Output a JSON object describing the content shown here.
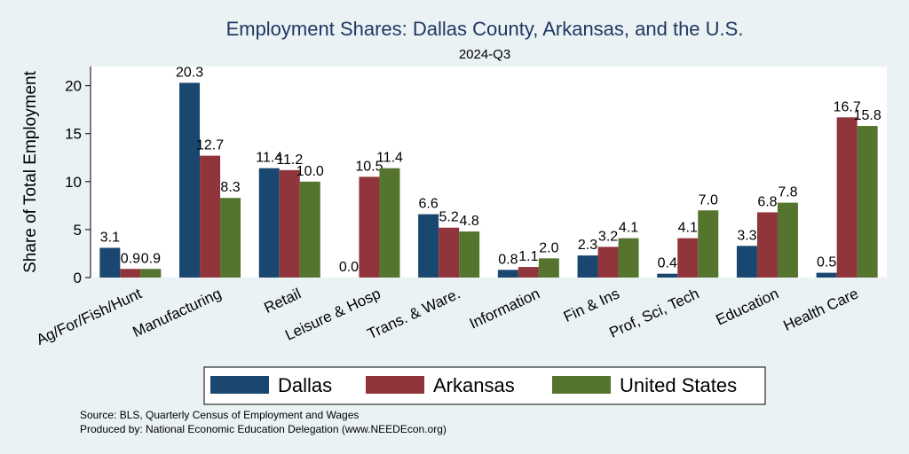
{
  "chart_data": {
    "type": "bar",
    "title": "Employment Shares: Dallas County, Arkansas, and the U.S.",
    "subtitle": "2024-Q3",
    "xlabel": "",
    "ylabel": "Share of Total Employment",
    "ylim": [
      0,
      22
    ],
    "yticks": [
      0,
      5,
      10,
      15,
      20
    ],
    "grid": false,
    "legend_position": "bottom",
    "categories": [
      "Ag/For/Fish/Hunt",
      "Manufacturing",
      "Retail",
      "Leisure & Hosp",
      "Trans. & Ware.",
      "Information",
      "Fin & Ins",
      "Prof, Sci, Tech",
      "Education",
      "Health Care"
    ],
    "series": [
      {
        "name": "Dallas",
        "color": "#1a476f",
        "values": [
          3.1,
          20.3,
          11.4,
          0.0,
          6.6,
          0.8,
          2.3,
          0.4,
          3.3,
          0.5
        ]
      },
      {
        "name": "Arkansas",
        "color": "#90353b",
        "values": [
          0.9,
          12.7,
          11.2,
          10.5,
          5.2,
          1.1,
          3.2,
          4.1,
          6.8,
          16.7
        ]
      },
      {
        "name": "United States",
        "color": "#55752f",
        "values": [
          0.9,
          8.3,
          10.0,
          11.4,
          4.8,
          2.0,
          4.1,
          7.0,
          7.8,
          15.8
        ]
      }
    ],
    "notes": [
      "Source: BLS, Quarterly Census of Employment and Wages",
      "Produced by: National Economic Education Delegation (www.NEEDEcon.org)"
    ]
  }
}
